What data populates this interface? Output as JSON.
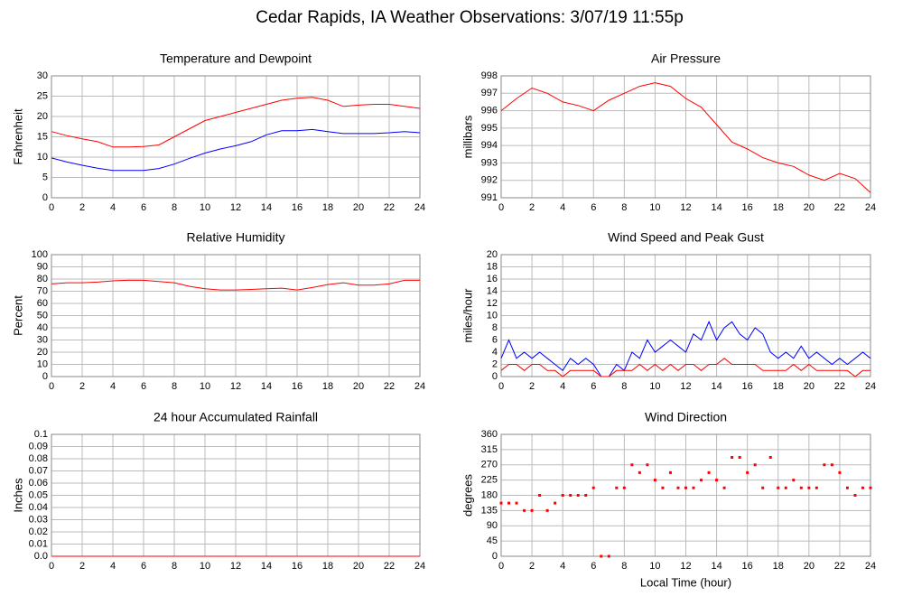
{
  "title": "Cedar Rapids, IA Weather Observations: 3/07/19 11:55p",
  "chart_data": [
    {
      "type": "line",
      "title": "Temperature and Dewpoint",
      "ylabel": "Fahrenheit",
      "x": [
        0,
        1,
        2,
        3,
        4,
        5,
        6,
        7,
        8,
        9,
        10,
        11,
        12,
        13,
        14,
        15,
        16,
        17,
        18,
        19,
        20,
        21,
        22,
        23,
        24
      ],
      "series": [
        {
          "color": "#ff0000",
          "values": [
            16.3,
            15.3,
            14.5,
            13.8,
            12.5,
            12.5,
            12.6,
            13.0,
            15.0,
            17.0,
            19.0,
            20.0,
            21.0,
            22.0,
            23.0,
            24.0,
            24.5,
            24.7,
            24.0,
            22.5,
            22.8,
            23.0,
            23.0,
            22.5,
            22.0
          ]
        },
        {
          "color": "#0000ff",
          "values": [
            9.8,
            8.8,
            8.0,
            7.3,
            6.7,
            6.7,
            6.7,
            7.2,
            8.3,
            9.7,
            11.0,
            12.0,
            12.8,
            13.8,
            15.5,
            16.5,
            16.5,
            16.8,
            16.3,
            15.8,
            15.8,
            15.8,
            16.0,
            16.3,
            16.0
          ]
        }
      ],
      "xlim": [
        0,
        24
      ],
      "xticks": [
        0,
        2,
        4,
        6,
        8,
        10,
        12,
        14,
        16,
        18,
        20,
        22,
        24
      ],
      "ylim": [
        0,
        30
      ],
      "yticks": [
        0,
        5,
        10,
        15,
        20,
        25,
        30
      ],
      "grid": true
    },
    {
      "type": "line",
      "title": "Air Pressure",
      "ylabel": "millibars",
      "x": [
        0,
        1,
        2,
        3,
        4,
        5,
        6,
        7,
        8,
        9,
        10,
        11,
        12,
        13,
        14,
        15,
        16,
        17,
        18,
        19,
        20,
        21,
        22,
        23,
        24
      ],
      "series": [
        {
          "color": "#ff0000",
          "values": [
            996.0,
            996.7,
            997.3,
            997.0,
            996.5,
            996.3,
            996.0,
            996.6,
            997.0,
            997.4,
            997.6,
            997.4,
            996.7,
            996.2,
            995.2,
            994.2,
            993.8,
            993.3,
            993.0,
            992.8,
            992.3,
            992.0,
            992.4,
            992.1,
            991.3
          ]
        }
      ],
      "xlim": [
        0,
        24
      ],
      "xticks": [
        0,
        2,
        4,
        6,
        8,
        10,
        12,
        14,
        16,
        18,
        20,
        22,
        24
      ],
      "ylim": [
        991,
        998
      ],
      "yticks": [
        991,
        992,
        993,
        994,
        995,
        996,
        997,
        998
      ],
      "grid": true
    },
    {
      "type": "line",
      "title": "Relative Humidity",
      "ylabel": "Percent",
      "x": [
        0,
        1,
        2,
        3,
        4,
        5,
        6,
        7,
        8,
        9,
        10,
        11,
        12,
        13,
        14,
        15,
        16,
        17,
        18,
        19,
        20,
        21,
        22,
        23,
        24
      ],
      "series": [
        {
          "color": "#ff0000",
          "values": [
            76,
            77,
            77,
            77.5,
            78.5,
            79,
            79,
            78,
            77,
            74,
            72,
            71,
            71,
            71.5,
            72,
            72.5,
            71,
            73,
            75.5,
            77,
            75,
            75,
            76,
            79,
            79
          ]
        }
      ],
      "xlim": [
        0,
        24
      ],
      "xticks": [
        0,
        2,
        4,
        6,
        8,
        10,
        12,
        14,
        16,
        18,
        20,
        22,
        24
      ],
      "ylim": [
        0,
        100
      ],
      "yticks": [
        0,
        10,
        20,
        30,
        40,
        50,
        60,
        70,
        80,
        90,
        100
      ],
      "grid": true
    },
    {
      "type": "line",
      "title": "Wind Speed and Peak Gust",
      "ylabel": "miles/hour",
      "x": [
        0,
        0.5,
        1,
        1.5,
        2,
        2.5,
        3,
        3.5,
        4,
        4.5,
        5,
        5.5,
        6,
        6.5,
        7,
        7.5,
        8,
        8.5,
        9,
        9.5,
        10,
        10.5,
        11,
        11.5,
        12,
        12.5,
        13,
        13.5,
        14,
        14.5,
        15,
        15.5,
        16,
        16.5,
        17,
        17.5,
        18,
        18.5,
        19,
        19.5,
        20,
        20.5,
        21,
        21.5,
        22,
        22.5,
        23,
        23.5,
        24
      ],
      "series": [
        {
          "color": "#0000ff",
          "values": [
            3,
            6,
            3,
            4,
            3,
            4,
            3,
            2,
            1,
            3,
            2,
            3,
            2,
            0,
            0,
            2,
            1,
            4,
            3,
            6,
            4,
            5,
            6,
            5,
            4,
            7,
            6,
            9,
            6,
            8,
            9,
            7,
            6,
            8,
            7,
            4,
            3,
            4,
            3,
            5,
            3,
            4,
            3,
            2,
            3,
            2,
            3,
            4,
            3
          ]
        },
        {
          "color": "#ff0000",
          "values": [
            1,
            2,
            2,
            1,
            2,
            2,
            1,
            1,
            0,
            1,
            1,
            1,
            1,
            0,
            0,
            1,
            1,
            1,
            2,
            1,
            2,
            1,
            2,
            1,
            2,
            2,
            1,
            2,
            2,
            3,
            2,
            2,
            2,
            2,
            1,
            1,
            1,
            1,
            2,
            1,
            2,
            1,
            1,
            1,
            1,
            1,
            0,
            1,
            1
          ]
        }
      ],
      "xlim": [
        0,
        24
      ],
      "xticks": [
        0,
        2,
        4,
        6,
        8,
        10,
        12,
        14,
        16,
        18,
        20,
        22,
        24
      ],
      "ylim": [
        0,
        20
      ],
      "yticks": [
        0,
        2,
        4,
        6,
        8,
        10,
        12,
        14,
        16,
        18,
        20
      ],
      "grid": true
    },
    {
      "type": "line",
      "title": "24 hour Accumulated Rainfall",
      "ylabel": "Inches",
      "x": [
        0,
        24
      ],
      "series": [
        {
          "color": "#ff0000",
          "values": [
            0,
            0
          ]
        }
      ],
      "xlim": [
        0,
        24
      ],
      "xticks": [
        0,
        2,
        4,
        6,
        8,
        10,
        12,
        14,
        16,
        18,
        20,
        22,
        24
      ],
      "ylim": [
        0,
        0.1
      ],
      "yticks": [
        {
          "value": 0,
          "label": "0.0"
        },
        0.01,
        0.02,
        0.03,
        0.04,
        0.05,
        0.06,
        0.07,
        0.08,
        0.09,
        0.1
      ],
      "grid": true
    },
    {
      "type": "scatter",
      "title": "Wind Direction",
      "ylabel": "degrees",
      "xlabel": "Local Time (hour)",
      "x": [
        0,
        0.5,
        1,
        1.5,
        2,
        2.5,
        3,
        3.5,
        4,
        4.5,
        5,
        5.5,
        6,
        6.5,
        7,
        7.5,
        8,
        8.5,
        9,
        9.5,
        10,
        10.5,
        11,
        11.5,
        12,
        12.5,
        13,
        13.5,
        14,
        14.5,
        15,
        15.5,
        16,
        16.5,
        17,
        17.5,
        18,
        18.5,
        19,
        19.5,
        20,
        20.5,
        21,
        21.5,
        22,
        22.5,
        23,
        23.5,
        24
      ],
      "series": [
        {
          "color": "#ff0000",
          "values": [
            157,
            157,
            157,
            135,
            135,
            180,
            135,
            157,
            180,
            180,
            180,
            180,
            202,
            0,
            0,
            202,
            202,
            270,
            247,
            270,
            225,
            202,
            247,
            202,
            202,
            202,
            225,
            247,
            225,
            202,
            292,
            292,
            247,
            270,
            202,
            292,
            202,
            202,
            225,
            202,
            202,
            202,
            270,
            270,
            247,
            202,
            180,
            202,
            202
          ]
        }
      ],
      "xlim": [
        0,
        24
      ],
      "xticks": [
        0,
        2,
        4,
        6,
        8,
        10,
        12,
        14,
        16,
        18,
        20,
        22,
        24
      ],
      "ylim": [
        0,
        360
      ],
      "yticks": [
        0,
        45,
        90,
        135,
        180,
        225,
        270,
        315,
        360
      ],
      "grid": true
    }
  ]
}
